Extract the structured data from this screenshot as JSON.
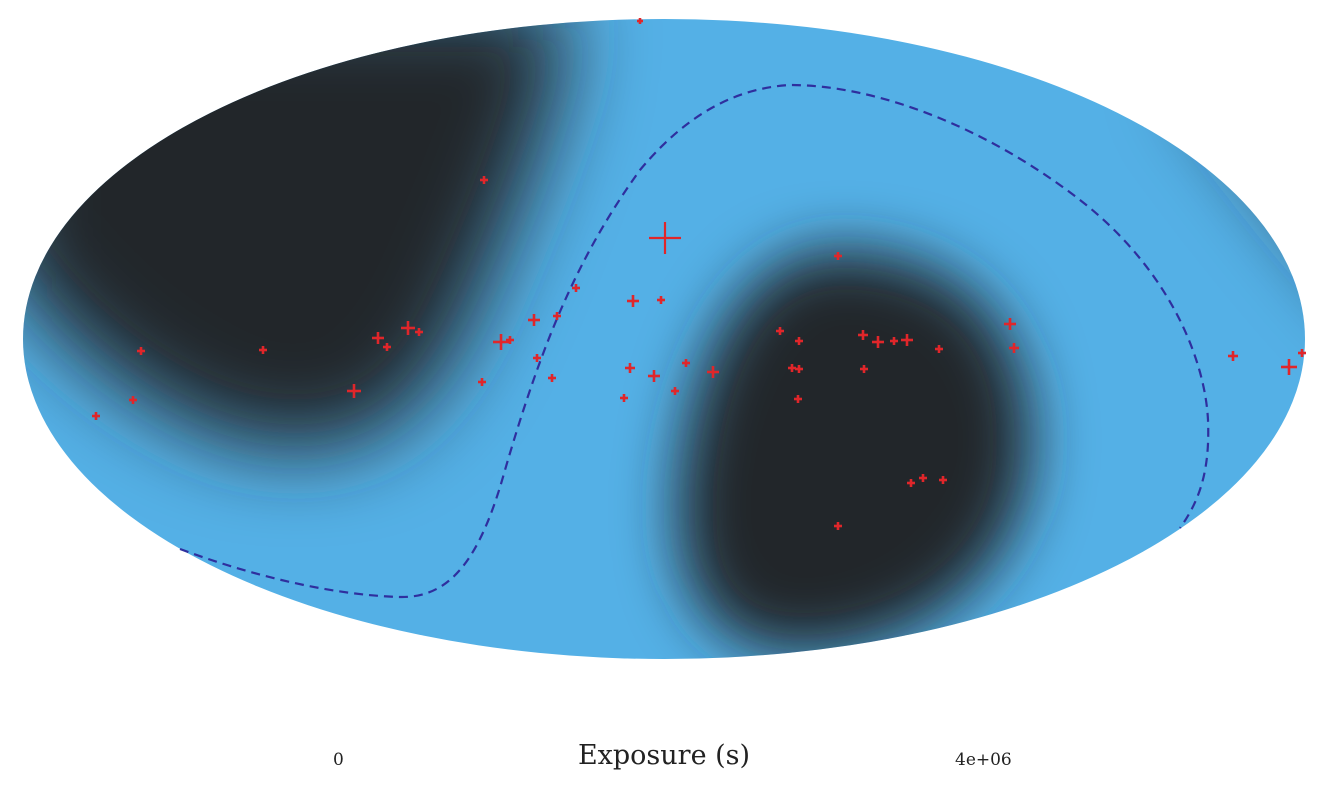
{
  "colorbar": {
    "label": "Exposure (s)",
    "min_label": "0",
    "max_label": "4e+06",
    "min_value": 0,
    "max_value": 4000000,
    "color_low": "#232629",
    "color_high": "#54b0e6"
  },
  "colors": {
    "marker": "#e0262a",
    "contour": "#2f2f9e",
    "background": "#ffffff"
  },
  "map": {
    "projection": "mollweide",
    "overlay_contour_style": "dashed"
  }
}
